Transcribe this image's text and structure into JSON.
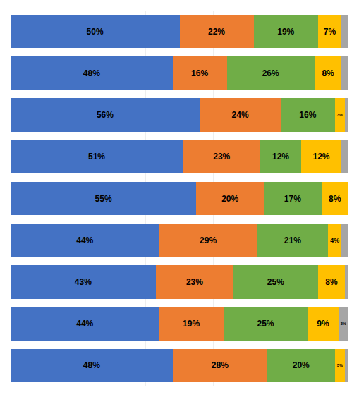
{
  "chart_data": {
    "type": "bar",
    "orientation": "horizontal",
    "stacked": true,
    "data_labels": true,
    "tick_labels": false,
    "grid": true,
    "categories": [
      null,
      null,
      null,
      null,
      null,
      null,
      null,
      null,
      null
    ],
    "xlim": [
      0,
      100
    ],
    "xticks": [
      0,
      20,
      40,
      60,
      80,
      100
    ],
    "series": [
      {
        "color": "#4472C4",
        "values": [
          50,
          48,
          56,
          51,
          55,
          44,
          43,
          44,
          48
        ],
        "value_labels": [
          "50%",
          "48%",
          "56%",
          "51%",
          "55%",
          "44%",
          "43%",
          "44%",
          "48%"
        ]
      },
      {
        "color": "#ED7D31",
        "values": [
          22,
          16,
          24,
          23,
          20,
          29,
          23,
          19,
          28
        ],
        "value_labels": [
          "22%",
          "16%",
          "24%",
          "23%",
          "20%",
          "29%",
          "23%",
          "19%",
          "28%"
        ]
      },
      {
        "color": "#70AD47",
        "values": [
          19,
          26,
          16,
          12,
          17,
          21,
          25,
          25,
          20
        ],
        "value_labels": [
          "19%",
          "26%",
          "16%",
          "12%",
          "17%",
          "21%",
          "25%",
          "25%",
          "20%"
        ]
      },
      {
        "color": "#FFC000",
        "values": [
          7,
          8,
          3,
          12,
          8,
          4,
          8,
          9,
          3
        ],
        "value_labels": [
          "7%",
          "8%",
          "3%",
          "12%",
          "8%",
          "4%",
          "8%",
          "9%",
          "3%"
        ]
      },
      {
        "color": "#A5A5A5",
        "values": [
          2,
          2,
          1,
          2,
          0,
          2,
          1,
          3,
          1
        ],
        "value_labels": [
          null,
          null,
          null,
          null,
          null,
          null,
          null,
          "3%",
          null
        ]
      }
    ]
  }
}
